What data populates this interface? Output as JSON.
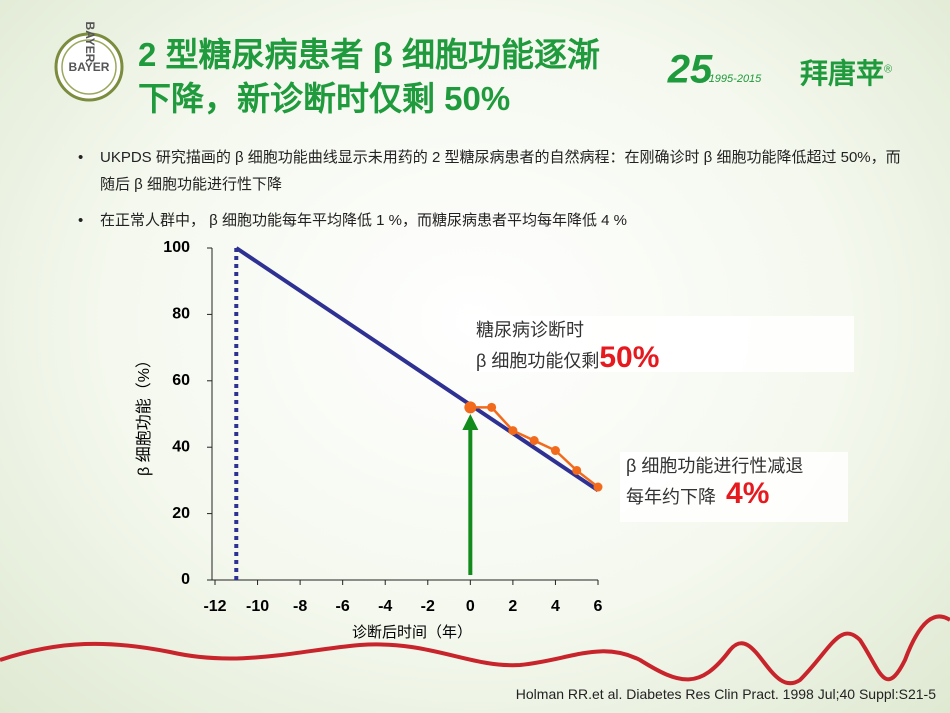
{
  "slide": {
    "logo_left": "BAYER",
    "title_lines": [
      "2 型糖尿病患者 β 细胞功能逐渐",
      "下降，新诊断时仅剩 50%"
    ],
    "logo_anniversary": "25",
    "logo_years": "1995-2015",
    "brand": "拜唐苹",
    "brand_mark": "®",
    "bullets": [
      "UKPDS 研究描画的 β 细胞功能曲线显示未用药的 2 型糖尿病患者的自然病程：在刚确诊时 β 细胞功能降低超过 50%，而随后 β 细胞功能进行性下降",
      "在正常人群中， β 细胞功能每年平均降低 1 %，而糖尿病患者平均每年降低 4 %"
    ],
    "source": "Holman RR.et al. Diabetes Res Clin Pract. 1998 Jul;40 Suppl:S21-5"
  },
  "chart_data": {
    "type": "line",
    "x_label": "诊断后时间（年）",
    "y_label": "β 细胞功能（%）",
    "xlim": [
      -12,
      6
    ],
    "ylim": [
      0,
      100
    ],
    "xticks": [
      -12,
      -10,
      -8,
      -6,
      -4,
      -2,
      0,
      2,
      4,
      6
    ],
    "yticks": [
      0,
      20,
      40,
      60,
      80,
      100
    ],
    "series": [
      {
        "color": "#2e3192",
        "x": [
          -11,
          6
        ],
        "values": [
          100,
          27
        ]
      },
      {
        "color": "#f26b1d",
        "x": [
          0,
          1,
          2,
          3,
          4,
          5,
          6
        ],
        "values": [
          52,
          52,
          45,
          42,
          39,
          33,
          28
        ]
      }
    ],
    "reference_x": -11,
    "arrow": {
      "x": 0,
      "from": 0,
      "to": 50,
      "color": "#138a1c"
    },
    "annotations": [
      {
        "lines": [
          "糖尿病诊断时",
          "β 细胞功能仅剩"
        ],
        "highlight": "50%"
      },
      {
        "lines": [
          "β 细胞功能进行性减退",
          "每年约下降"
        ],
        "highlight": "4%"
      }
    ]
  }
}
